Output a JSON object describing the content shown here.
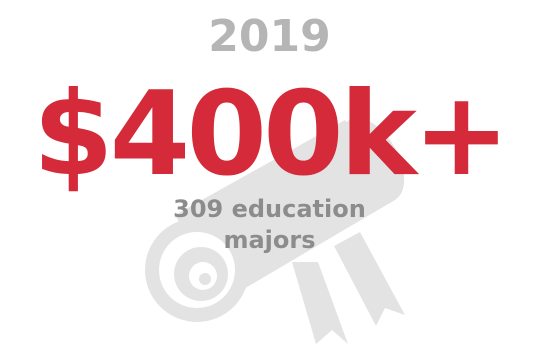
{
  "year": "2019",
  "amount": "$400k+",
  "caption_line1": "309 education",
  "caption_line2": "majors",
  "colors": {
    "accent_red": "#d42a39",
    "year_gray": "#b5b5b5",
    "caption_gray": "#8c8c8c",
    "diploma_gray": "#e3e3e3"
  },
  "icons": [
    "diploma-scroll-icon"
  ]
}
